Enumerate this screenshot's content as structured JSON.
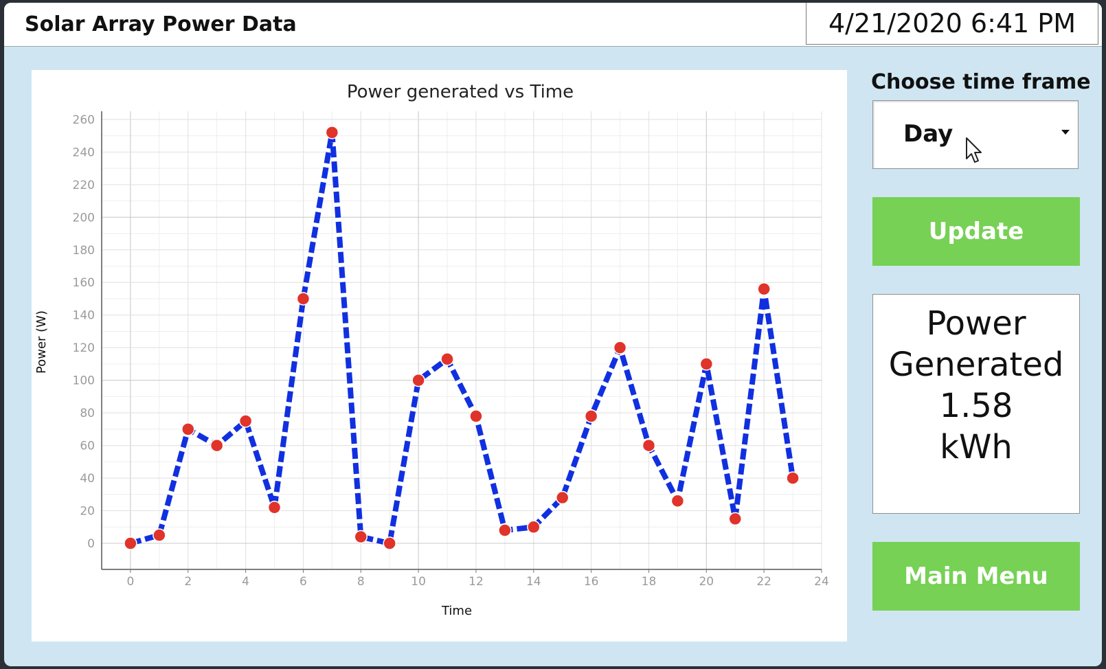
{
  "app": {
    "title": "Solar Array Power Data",
    "datetime": "4/21/2020 6:41 PM"
  },
  "controls": {
    "timeframe_label": "Choose time frame",
    "timeframe_value": "Day",
    "update_label": "Update",
    "main_menu_label": "Main Menu"
  },
  "readout": {
    "line1": "Power",
    "line2": "Generated",
    "value": "1.58",
    "unit": "kWh"
  },
  "colors": {
    "button_green": "#76d154",
    "line_blue": "#1030e0",
    "marker_red": "#e0332a",
    "panel_blue": "#cfe6f2"
  },
  "chart_data": {
    "type": "line",
    "title": "Power generated vs Time",
    "xlabel": "Time",
    "ylabel": "Power (W)",
    "xlim": [
      -1,
      24
    ],
    "ylim": [
      -16,
      265
    ],
    "xticks": [
      0,
      2,
      4,
      6,
      8,
      10,
      12,
      14,
      16,
      18,
      20,
      22,
      24
    ],
    "yticks": [
      0,
      20,
      40,
      60,
      80,
      100,
      120,
      140,
      160,
      180,
      200,
      220,
      240,
      260
    ],
    "grid": true,
    "series": [
      {
        "name": "",
        "x": [
          0,
          1,
          2,
          3,
          4,
          5,
          6,
          7,
          8,
          9,
          10,
          11,
          12,
          13,
          14,
          15,
          16,
          17,
          18,
          19,
          20,
          21,
          22,
          23
        ],
        "y": [
          0,
          5,
          70,
          60,
          75,
          22,
          150,
          252,
          4,
          0,
          100,
          113,
          78,
          8,
          10,
          28,
          78,
          120,
          60,
          26,
          110,
          15,
          156,
          40
        ]
      }
    ]
  }
}
